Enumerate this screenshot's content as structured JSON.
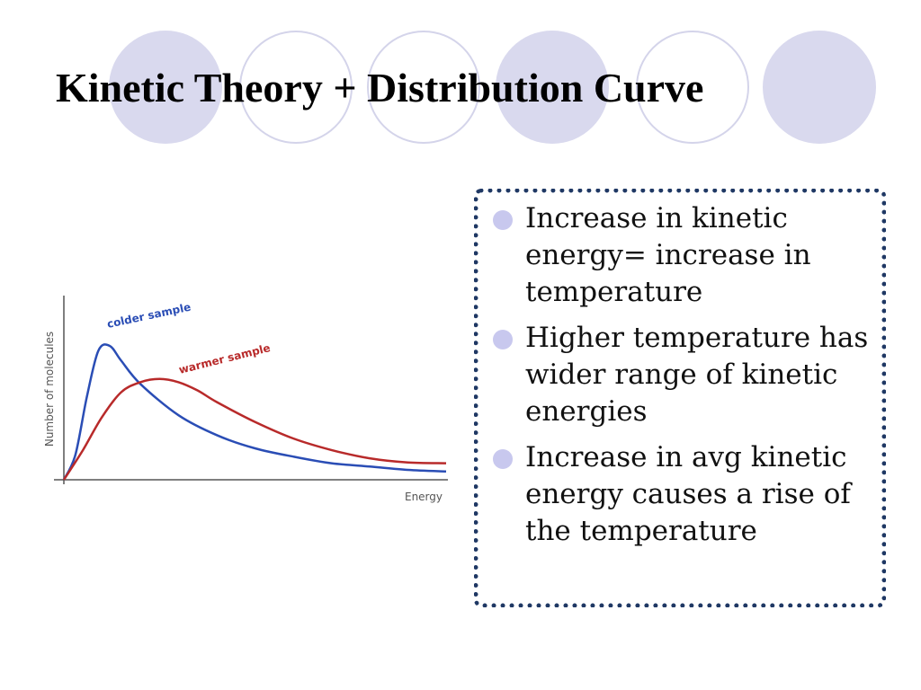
{
  "slide": {
    "title": "Kinetic Theory + Distribution Curve",
    "decoration": {
      "circle_fill": "#d9d9ee",
      "circle_outline": "#d4d4ea"
    },
    "box_border_color": "#1f3864",
    "bullets": [
      "Increase in kinetic energy= increase in temperature",
      "Higher temperature has wider range of kinetic energies",
      "Increase in avg kinetic energy causes a rise of the temperature"
    ]
  },
  "chart_data": {
    "type": "line",
    "xlabel": "Energy",
    "ylabel": "Number of molecules",
    "xlim": [
      0,
      10
    ],
    "ylim": [
      0,
      10
    ],
    "grid": false,
    "legend": "inline labels near peaks",
    "series": [
      {
        "name": "colder sample",
        "color": "#2a4db5",
        "points": [
          [
            0,
            0
          ],
          [
            0.3,
            1.5
          ],
          [
            0.6,
            5.0
          ],
          [
            0.9,
            7.8
          ],
          [
            1.2,
            8.1
          ],
          [
            1.5,
            7.2
          ],
          [
            2,
            5.8
          ],
          [
            3,
            3.9
          ],
          [
            4,
            2.7
          ],
          [
            5,
            1.9
          ],
          [
            6,
            1.4
          ],
          [
            7,
            1.0
          ],
          [
            8,
            0.8
          ],
          [
            9,
            0.6
          ],
          [
            10,
            0.5
          ]
        ]
      },
      {
        "name": "warmer sample",
        "color": "#b82a2a",
        "points": [
          [
            0,
            0
          ],
          [
            0.5,
            1.8
          ],
          [
            1,
            3.8
          ],
          [
            1.5,
            5.3
          ],
          [
            2,
            5.9
          ],
          [
            2.5,
            6.1
          ],
          [
            3,
            5.9
          ],
          [
            3.5,
            5.4
          ],
          [
            4,
            4.7
          ],
          [
            5,
            3.5
          ],
          [
            6,
            2.5
          ],
          [
            7,
            1.8
          ],
          [
            8,
            1.3
          ],
          [
            9,
            1.05
          ],
          [
            10,
            1.0
          ]
        ]
      }
    ]
  }
}
